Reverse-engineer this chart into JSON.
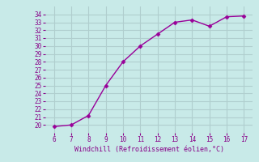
{
  "x": [
    6,
    7,
    8,
    9,
    10,
    11,
    12,
    13,
    14,
    15,
    16,
    17
  ],
  "y": [
    19.8,
    20.0,
    21.2,
    25.0,
    28.0,
    30.0,
    31.5,
    33.0,
    33.3,
    32.5,
    33.7,
    33.8
  ],
  "line_color": "#990099",
  "marker": "D",
  "marker_size": 2.5,
  "background_color": "#c8eae8",
  "grid_color": "#b0cece",
  "xlabel": "Windchill (Refroidissement éolien,°C)",
  "xlabel_color": "#880088",
  "tick_color": "#880088",
  "xlim_min": 5.5,
  "xlim_max": 17.5,
  "ylim_min": 19.0,
  "ylim_max": 35.0,
  "xticks": [
    6,
    7,
    8,
    9,
    10,
    11,
    12,
    13,
    14,
    15,
    16,
    17
  ],
  "yticks": [
    20,
    21,
    22,
    23,
    24,
    25,
    26,
    27,
    28,
    29,
    30,
    31,
    32,
    33,
    34
  ]
}
